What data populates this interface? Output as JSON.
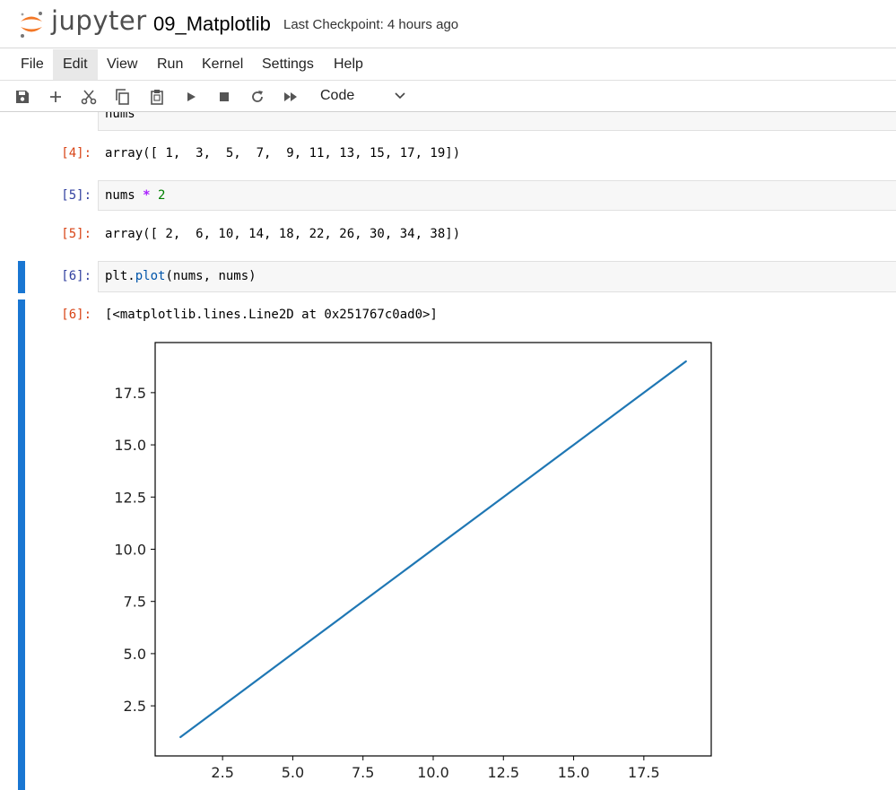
{
  "header": {
    "brand": "jupyter",
    "notebook_name": "09_Matplotlib",
    "checkpoint": "Last Checkpoint: 4 hours ago"
  },
  "menu": [
    "File",
    "Edit",
    "View",
    "Run",
    "Kernel",
    "Settings",
    "Help"
  ],
  "toolbar": {
    "icons": [
      "save-icon",
      "add-icon",
      "cut-icon",
      "copy-icon",
      "paste-icon",
      "run-icon",
      "stop-icon",
      "restart-icon",
      "fast-forward-icon"
    ],
    "cell_type": "Code"
  },
  "cells": {
    "partial_input": "nums",
    "out4_prompt": "[4]:",
    "out4_text": "array([ 1,  3,  5,  7,  9, 11, 13, 15, 17, 19])",
    "in5_prompt": "[5]:",
    "in5_a": "nums ",
    "in5_op": "*",
    "in5_num": "2",
    "out5_prompt": "[5]:",
    "out5_text": "array([ 2,  6, 10, 14, 18, 22, 26, 30, 34, 38])",
    "in6_prompt": "[6]:",
    "in6_a": "plt.",
    "in6_fn": "plot",
    "in6_b": "(nums, nums)",
    "out6_prompt": "[6]:",
    "out6_text": "[<matplotlib.lines.Line2D at 0x251767c0ad0>]"
  },
  "colors": {
    "accent": "#1976d2",
    "line": "#1f77b4",
    "jupyter_orange": "#f37726"
  },
  "chart_data": {
    "type": "line",
    "title": "",
    "xlabel": "",
    "ylabel": "",
    "x": [
      1,
      3,
      5,
      7,
      9,
      11,
      13,
      15,
      17,
      19
    ],
    "series": [
      {
        "values": [
          1,
          3,
          5,
          7,
          9,
          11,
          13,
          15,
          17,
          19
        ]
      }
    ],
    "xlim": [
      0.1,
      19.9
    ],
    "ylim": [
      0.1,
      19.9
    ],
    "xticks": [
      2.5,
      5.0,
      7.5,
      10.0,
      12.5,
      15.0,
      17.5
    ],
    "yticks": [
      2.5,
      5.0,
      7.5,
      10.0,
      12.5,
      15.0,
      17.5
    ],
    "xtick_labels": [
      "2.5",
      "5.0",
      "7.5",
      "10.0",
      "12.5",
      "15.0",
      "17.5"
    ],
    "ytick_labels": [
      "2.5",
      "5.0",
      "7.5",
      "10.0",
      "12.5",
      "15.0",
      "17.5"
    ],
    "grid": false,
    "legend": "none"
  }
}
